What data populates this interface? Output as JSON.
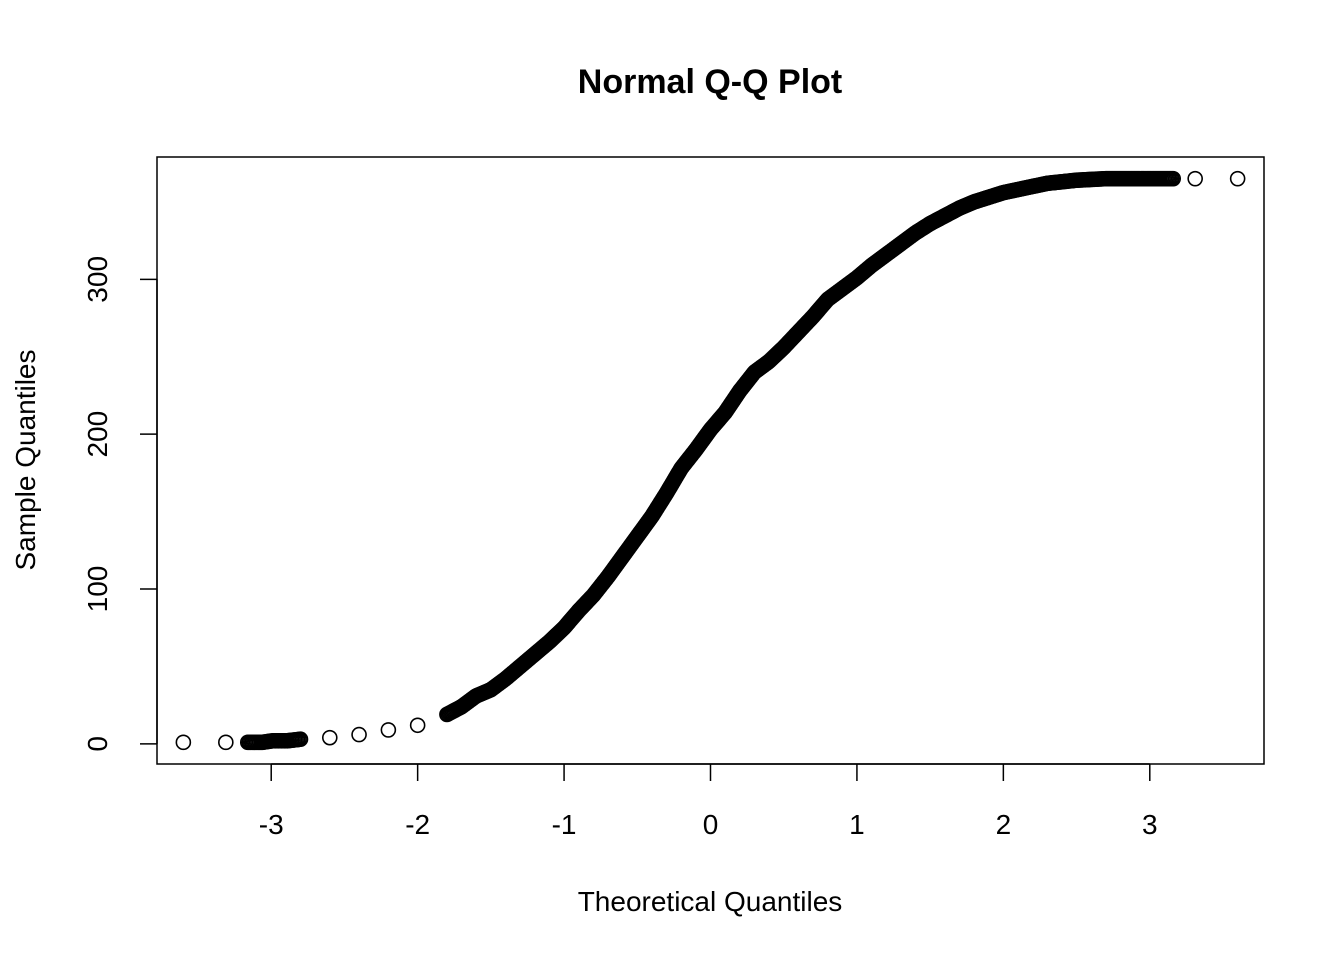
{
  "chart_data": {
    "type": "scatter",
    "title": "Normal Q-Q Plot",
    "xlabel": "Theoretical Quantiles",
    "ylabel": "Sample Quantiles",
    "xlim": [
      -3.78,
      3.78
    ],
    "ylim": [
      -13,
      379
    ],
    "xticks": [
      "-3",
      "-2",
      "-1",
      "0",
      "1",
      "2",
      "3"
    ],
    "yticks": [
      "0",
      "100",
      "200",
      "300"
    ],
    "grid": false,
    "marker": "open-circle",
    "color": "#000000",
    "points": [
      [
        -3.6,
        1
      ],
      [
        -3.31,
        1
      ],
      [
        -3.16,
        1
      ],
      [
        -3.06,
        1
      ],
      [
        -2.99,
        2
      ],
      [
        -2.93,
        2
      ],
      [
        -2.89,
        2
      ],
      [
        -2.8,
        3
      ],
      [
        -2.6,
        4
      ],
      [
        -2.4,
        6
      ],
      [
        -2.2,
        9
      ],
      [
        -2.0,
        12
      ],
      [
        -1.8,
        19
      ],
      [
        -1.7,
        24
      ],
      [
        -1.6,
        31
      ],
      [
        -1.5,
        35
      ],
      [
        -1.4,
        42
      ],
      [
        -1.3,
        50
      ],
      [
        -1.2,
        58
      ],
      [
        -1.1,
        66
      ],
      [
        -1.0,
        75
      ],
      [
        -0.9,
        86
      ],
      [
        -0.8,
        96
      ],
      [
        -0.7,
        108
      ],
      [
        -0.6,
        121
      ],
      [
        -0.5,
        134
      ],
      [
        -0.4,
        147
      ],
      [
        -0.3,
        162
      ],
      [
        -0.2,
        178
      ],
      [
        -0.1,
        190
      ],
      [
        0.0,
        203
      ],
      [
        0.1,
        214
      ],
      [
        0.2,
        228
      ],
      [
        0.3,
        240
      ],
      [
        0.4,
        247
      ],
      [
        0.5,
        256
      ],
      [
        0.6,
        266
      ],
      [
        0.7,
        276
      ],
      [
        0.8,
        287
      ],
      [
        0.9,
        294
      ],
      [
        1.0,
        301
      ],
      [
        1.1,
        309
      ],
      [
        1.2,
        316
      ],
      [
        1.3,
        323
      ],
      [
        1.4,
        330
      ],
      [
        1.5,
        336
      ],
      [
        1.6,
        341
      ],
      [
        1.7,
        346
      ],
      [
        1.8,
        350
      ],
      [
        1.9,
        353
      ],
      [
        2.0,
        356
      ],
      [
        2.1,
        358
      ],
      [
        2.2,
        360
      ],
      [
        2.3,
        362
      ],
      [
        2.4,
        363
      ],
      [
        2.5,
        364
      ],
      [
        2.6,
        364.5
      ],
      [
        2.7,
        365
      ],
      [
        2.8,
        365
      ],
      [
        2.83,
        365
      ],
      [
        2.92,
        365
      ],
      [
        2.99,
        365
      ],
      [
        3.07,
        365
      ],
      [
        3.16,
        365
      ],
      [
        3.31,
        365
      ],
      [
        3.6,
        365
      ]
    ]
  }
}
